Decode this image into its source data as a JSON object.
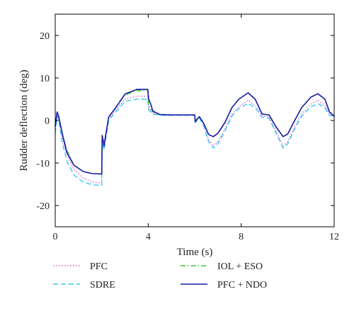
{
  "chart_data": {
    "type": "line",
    "title": "",
    "xlabel": "Time (s)",
    "ylabel": "Rudder deflection (deg)",
    "xlim": [
      0,
      12
    ],
    "ylim": [
      -25,
      25
    ],
    "xticks": [
      0,
      4,
      8,
      12
    ],
    "yticks": [
      -20,
      -10,
      0,
      10,
      20
    ],
    "grid": false,
    "legend_position": "below",
    "series": [
      {
        "name": "PFC",
        "color": "#d35fd3",
        "style": "dotted",
        "points": [
          [
            0,
            -2
          ],
          [
            0.08,
            1.5
          ],
          [
            0.15,
            0.5
          ],
          [
            0.3,
            -4
          ],
          [
            0.5,
            -8
          ],
          [
            0.8,
            -11.5
          ],
          [
            1.2,
            -13.5
          ],
          [
            1.6,
            -14.5
          ],
          [
            2.0,
            -14.7
          ],
          [
            2.02,
            -4
          ],
          [
            2.1,
            -5
          ],
          [
            2.3,
            0.5
          ],
          [
            2.6,
            2.5
          ],
          [
            3.0,
            5
          ],
          [
            3.5,
            5.7
          ],
          [
            3.98,
            5.7
          ],
          [
            4.02,
            3
          ],
          [
            4.2,
            1.8
          ],
          [
            4.5,
            1.3
          ],
          [
            5.0,
            1.3
          ],
          [
            6.0,
            1.3
          ],
          [
            6.02,
            0
          ],
          [
            6.2,
            0.8
          ],
          [
            6.4,
            -1
          ],
          [
            6.6,
            -4.5
          ],
          [
            6.8,
            -6
          ],
          [
            7.0,
            -5
          ],
          [
            7.3,
            -2
          ],
          [
            7.6,
            1.5
          ],
          [
            7.9,
            3.2
          ],
          [
            8.3,
            4.8
          ],
          [
            8.6,
            3.5
          ],
          [
            8.9,
            1
          ],
          [
            9.2,
            0.8
          ],
          [
            9.5,
            -2.5
          ],
          [
            9.8,
            -6
          ],
          [
            10.0,
            -5
          ],
          [
            10.3,
            -1.5
          ],
          [
            10.6,
            1.5
          ],
          [
            11.0,
            3.8
          ],
          [
            11.3,
            4.8
          ],
          [
            11.6,
            3.5
          ],
          [
            11.8,
            1.5
          ],
          [
            12,
            1
          ]
        ]
      },
      {
        "name": "SDRE",
        "color": "#33ccee",
        "style": "dashed",
        "points": [
          [
            0,
            -3
          ],
          [
            0.08,
            1
          ],
          [
            0.15,
            0
          ],
          [
            0.3,
            -5
          ],
          [
            0.5,
            -9.5
          ],
          [
            0.8,
            -12.8
          ],
          [
            1.2,
            -14.5
          ],
          [
            1.6,
            -15.1
          ],
          [
            2.0,
            -15.3
          ],
          [
            2.02,
            -5
          ],
          [
            2.1,
            -7
          ],
          [
            2.3,
            0
          ],
          [
            2.6,
            2
          ],
          [
            3.0,
            4.5
          ],
          [
            3.5,
            5
          ],
          [
            3.98,
            5
          ],
          [
            4.02,
            2.5
          ],
          [
            4.2,
            1.5
          ],
          [
            4.5,
            1.2
          ],
          [
            5.0,
            1.2
          ],
          [
            6.0,
            1.2
          ],
          [
            6.02,
            -0.5
          ],
          [
            6.2,
            0.6
          ],
          [
            6.4,
            -1.5
          ],
          [
            6.6,
            -5
          ],
          [
            6.8,
            -6.5
          ],
          [
            7.0,
            -5.5
          ],
          [
            7.3,
            -2.5
          ],
          [
            7.6,
            1
          ],
          [
            7.9,
            2.8
          ],
          [
            8.3,
            4
          ],
          [
            8.6,
            3
          ],
          [
            8.9,
            0.8
          ],
          [
            9.2,
            0.5
          ],
          [
            9.5,
            -3
          ],
          [
            9.8,
            -6.5
          ],
          [
            10.0,
            -5.5
          ],
          [
            10.3,
            -2
          ],
          [
            10.6,
            1
          ],
          [
            11.0,
            3.2
          ],
          [
            11.3,
            4
          ],
          [
            11.6,
            3
          ],
          [
            11.8,
            1.2
          ],
          [
            12,
            1
          ]
        ]
      },
      {
        "name": "IOL + ESO",
        "color": "#33cc33",
        "style": "dashdot",
        "points": [
          [
            0,
            -1
          ],
          [
            0.08,
            1.8
          ],
          [
            0.15,
            1
          ],
          [
            0.3,
            -3
          ],
          [
            0.5,
            -7
          ],
          [
            0.8,
            -10.5
          ],
          [
            1.2,
            -12
          ],
          [
            1.6,
            -12.5
          ],
          [
            2.0,
            -12.6
          ],
          [
            2.02,
            -3.5
          ],
          [
            2.1,
            -6
          ],
          [
            2.3,
            0.8
          ],
          [
            2.6,
            3
          ],
          [
            3.0,
            6
          ],
          [
            3.5,
            7
          ],
          [
            3.98,
            7.1
          ],
          [
            4.02,
            3.5
          ],
          [
            4.2,
            2
          ],
          [
            4.5,
            1.4
          ],
          [
            5.0,
            1.3
          ],
          [
            6.0,
            1.3
          ],
          [
            6.02,
            0
          ],
          [
            6.2,
            0.9
          ],
          [
            6.4,
            -0.8
          ],
          [
            6.6,
            -3.3
          ],
          [
            6.8,
            -3.8
          ],
          [
            7.0,
            -3
          ],
          [
            7.3,
            -0.5
          ],
          [
            7.6,
            3
          ],
          [
            7.9,
            5
          ],
          [
            8.3,
            6.5
          ],
          [
            8.6,
            5
          ],
          [
            8.9,
            1.5
          ],
          [
            9.2,
            1.3
          ],
          [
            9.5,
            -1.5
          ],
          [
            9.8,
            -3.8
          ],
          [
            10.0,
            -3.2
          ],
          [
            10.3,
            0
          ],
          [
            10.6,
            3
          ],
          [
            11.0,
            5.5
          ],
          [
            11.3,
            6.3
          ],
          [
            11.6,
            5
          ],
          [
            11.8,
            2
          ],
          [
            12,
            1
          ]
        ]
      },
      {
        "name": "PFC + NDO",
        "color": "#1a1aa8",
        "style": "solid",
        "points": [
          [
            0,
            -1.5
          ],
          [
            0.08,
            2
          ],
          [
            0.15,
            1
          ],
          [
            0.3,
            -3
          ],
          [
            0.5,
            -7.5
          ],
          [
            0.8,
            -10.5
          ],
          [
            1.2,
            -12
          ],
          [
            1.6,
            -12.5
          ],
          [
            2.0,
            -12.6
          ],
          [
            2.02,
            -3.5
          ],
          [
            2.1,
            -6
          ],
          [
            2.3,
            0.8
          ],
          [
            2.6,
            3
          ],
          [
            3.0,
            6.2
          ],
          [
            3.5,
            7.3
          ],
          [
            3.98,
            7.3
          ],
          [
            4.02,
            5
          ],
          [
            4.1,
            4
          ],
          [
            4.2,
            2.2
          ],
          [
            4.5,
            1.4
          ],
          [
            5.0,
            1.3
          ],
          [
            6.0,
            1.3
          ],
          [
            6.02,
            -0.3
          ],
          [
            6.2,
            0.9
          ],
          [
            6.4,
            -0.8
          ],
          [
            6.6,
            -3.3
          ],
          [
            6.8,
            -3.8
          ],
          [
            7.0,
            -3
          ],
          [
            7.3,
            -0.5
          ],
          [
            7.6,
            3
          ],
          [
            7.9,
            5
          ],
          [
            8.3,
            6.5
          ],
          [
            8.6,
            5
          ],
          [
            8.9,
            1.5
          ],
          [
            9.2,
            1.3
          ],
          [
            9.5,
            -1.5
          ],
          [
            9.8,
            -3.8
          ],
          [
            10.0,
            -3.2
          ],
          [
            10.3,
            0
          ],
          [
            10.6,
            3
          ],
          [
            11.0,
            5.5
          ],
          [
            11.3,
            6.3
          ],
          [
            11.6,
            5
          ],
          [
            11.8,
            2
          ],
          [
            12,
            1
          ]
        ]
      }
    ]
  }
}
